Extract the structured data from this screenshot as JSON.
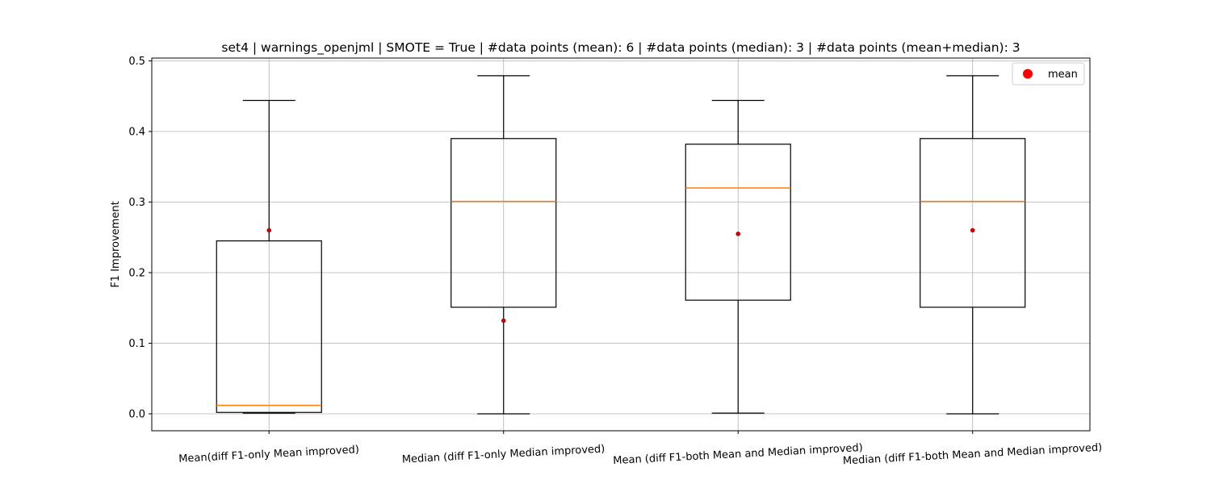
{
  "chart_data": {
    "type": "box",
    "title": "set4 | warnings_openjml | SMOTE = True | #data points (mean): 6 | #data points (median): 3 | #data points (mean+median): 3",
    "xlabel": "",
    "ylabel": "F1 Improvement",
    "ylim": [
      -0.024,
      0.504
    ],
    "yticks": [
      0.0,
      0.1,
      0.2,
      0.3,
      0.4,
      0.5
    ],
    "ytick_labels": [
      "0.0",
      "0.1",
      "0.2",
      "0.3",
      "0.4",
      "0.5"
    ],
    "grid": true,
    "legend": {
      "placement": "top-right",
      "entries": [
        {
          "label": "mean",
          "marker": "circle",
          "color": "#ff0000"
        }
      ]
    },
    "colors": {
      "box": "#000000",
      "median": "#ff7f0e",
      "mean": "#cc0000",
      "grid": "#b0b0b0"
    },
    "categories": [
      "Mean(diff F1-only Mean improved)",
      "Median (diff F1-only Median improved)",
      "Mean (diff F1-both Mean and Median improved)",
      "Median (diff F1-both Mean and Median improved)"
    ],
    "boxes": [
      {
        "whisker_low": 0.001,
        "q1": 0.002,
        "median": 0.012,
        "q3": 0.245,
        "whisker_high": 0.444,
        "mean": 0.26
      },
      {
        "whisker_low": 0.0,
        "q1": 0.151,
        "median": 0.301,
        "q3": 0.39,
        "whisker_high": 0.479,
        "mean": 0.132
      },
      {
        "whisker_low": 0.001,
        "q1": 0.161,
        "median": 0.32,
        "q3": 0.382,
        "whisker_high": 0.444,
        "mean": 0.255
      },
      {
        "whisker_low": 0.0,
        "q1": 0.151,
        "median": 0.301,
        "q3": 0.39,
        "whisker_high": 0.479,
        "mean": 0.26
      }
    ]
  }
}
